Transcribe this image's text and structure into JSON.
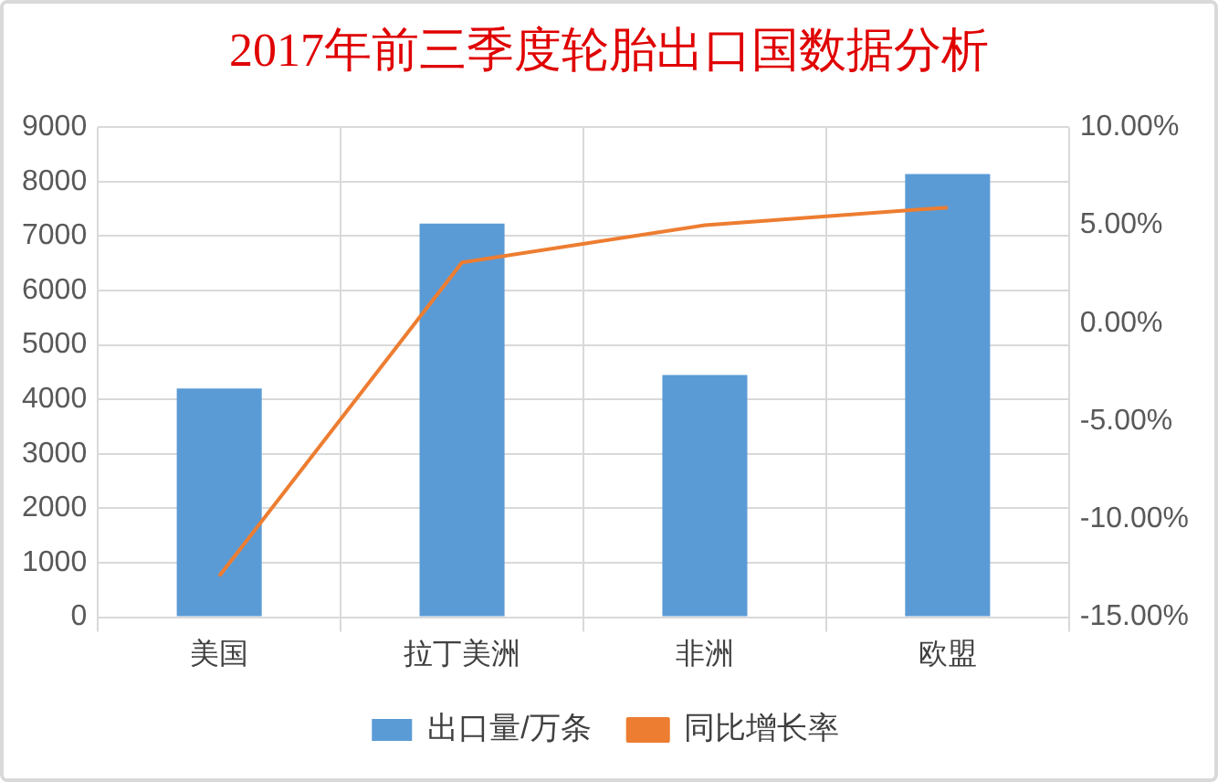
{
  "chart_data": {
    "type": "bar",
    "title": "2017年前三季度轮胎出口国数据分析",
    "categories": [
      "美国",
      "拉丁美洲",
      "非洲",
      "欧盟"
    ],
    "series": [
      {
        "name": "出口量/万条",
        "type": "bar",
        "color": "#5b9bd5",
        "values": [
          4200,
          7230,
          4450,
          8140
        ]
      },
      {
        "name": "同比增长率",
        "type": "line",
        "axis": "y2",
        "color": "#ed7d31",
        "values": [
          -12.9,
          3.1,
          5.0,
          5.9
        ]
      }
    ],
    "ylim": [
      0,
      9000
    ],
    "yticks": [
      0,
      1000,
      2000,
      3000,
      4000,
      5000,
      6000,
      7000,
      8000,
      9000
    ],
    "y2lim": [
      -15,
      10
    ],
    "y2ticks": [
      {
        "value": -15,
        "label": "-15.00%"
      },
      {
        "value": -10,
        "label": "-10.00%"
      },
      {
        "value": -5,
        "label": "-5.00%"
      },
      {
        "value": 0,
        "label": "0.00%"
      },
      {
        "value": 5,
        "label": "5.00%"
      },
      {
        "value": 10,
        "label": "10.00%"
      }
    ],
    "grid": true,
    "legend": "bottom",
    "marker": "none",
    "line_style": "solid"
  }
}
